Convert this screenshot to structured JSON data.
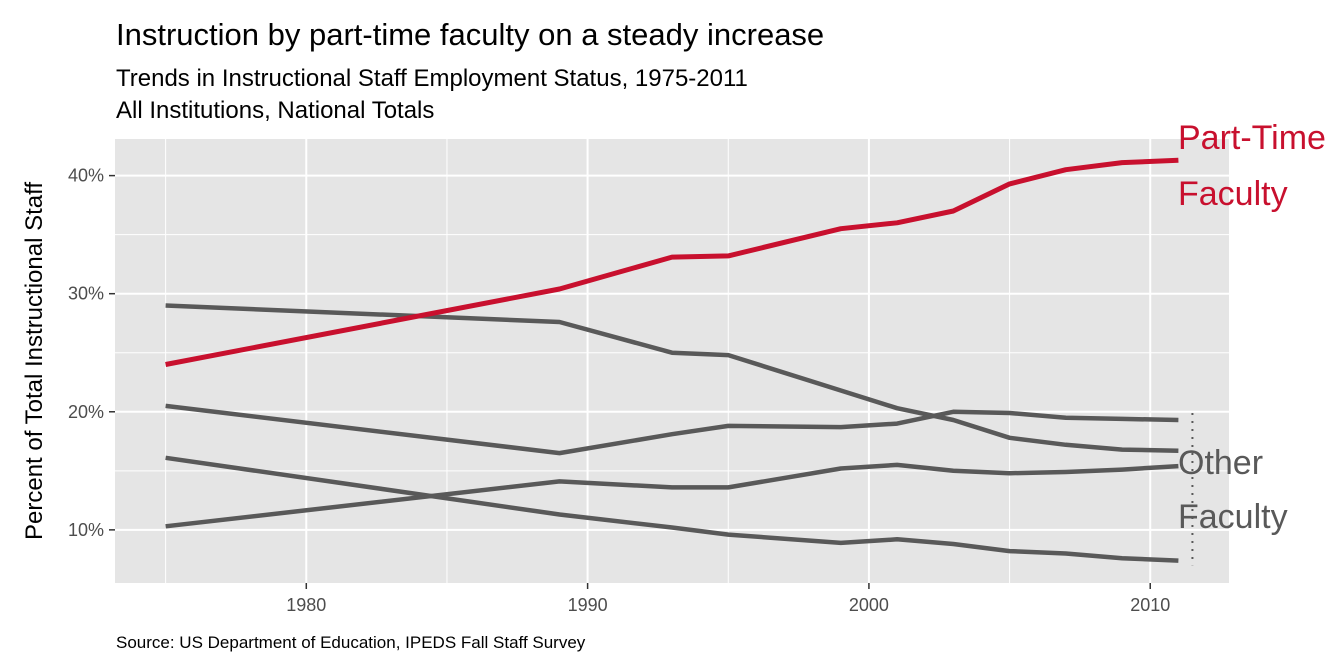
{
  "chart_data": {
    "type": "line",
    "title": "Instruction by part-time faculty on a steady increase",
    "subtitle_lines": [
      "Trends in Instructional Staff Employment Status, 1975-2011",
      "All Institutions, National Totals"
    ],
    "xlabel": "",
    "ylabel": "Percent of Total Instructional Staff",
    "caption": "Source: US Department of Education, IPEDS Fall Staff Survey",
    "xlim": [
      1973.2,
      2012.8
    ],
    "ylim": [
      5.5,
      43.1
    ],
    "x_ticks": [
      1980,
      1990,
      2000,
      2010
    ],
    "x_tick_labels": [
      "1980",
      "1990",
      "2000",
      "2010"
    ],
    "y_ticks": [
      10,
      20,
      30,
      40
    ],
    "y_tick_labels": [
      "10%",
      "20%",
      "30%",
      "40%"
    ],
    "grid": true,
    "x": [
      1975,
      1989,
      1993,
      1995,
      1999,
      2001,
      2003,
      2005,
      2007,
      2009,
      2011
    ],
    "series": [
      {
        "values": [
          24.0,
          30.4,
          33.1,
          33.2,
          35.5,
          36.0,
          37.0,
          39.3,
          40.5,
          41.1,
          41.3
        ],
        "color": "#c8102e",
        "highlight": true
      },
      {
        "values": [
          29.0,
          27.6,
          25.0,
          24.8,
          21.8,
          20.3,
          19.3,
          17.8,
          17.2,
          16.8,
          16.7
        ],
        "color": "#595959"
      },
      {
        "values": [
          20.5,
          16.5,
          18.1,
          18.8,
          18.7,
          19.0,
          20.0,
          19.9,
          19.5,
          19.4,
          19.3
        ],
        "color": "#595959"
      },
      {
        "values": [
          10.3,
          14.1,
          13.6,
          13.6,
          15.2,
          15.5,
          15.0,
          14.8,
          14.9,
          15.1,
          15.4
        ],
        "color": "#595959"
      },
      {
        "values": [
          16.1,
          11.3,
          10.2,
          9.6,
          8.9,
          9.2,
          8.8,
          8.2,
          8.0,
          7.6,
          7.4
        ],
        "color": "#595959"
      }
    ],
    "bracket": {
      "x": 2011.5,
      "y_from": 7.0,
      "y_to": 19.9,
      "color": "#595959"
    },
    "direct_labels": [
      {
        "lines": [
          "Part-Time",
          "Faculty"
        ],
        "color": "#c8102e"
      },
      {
        "lines": [
          "Other",
          "Faculty"
        ],
        "color": "#595959"
      }
    ],
    "colors": {
      "panel_background": "#e5e5e5",
      "grid_major": "#ffffff",
      "highlight": "#c8102e",
      "other": "#595959"
    }
  }
}
